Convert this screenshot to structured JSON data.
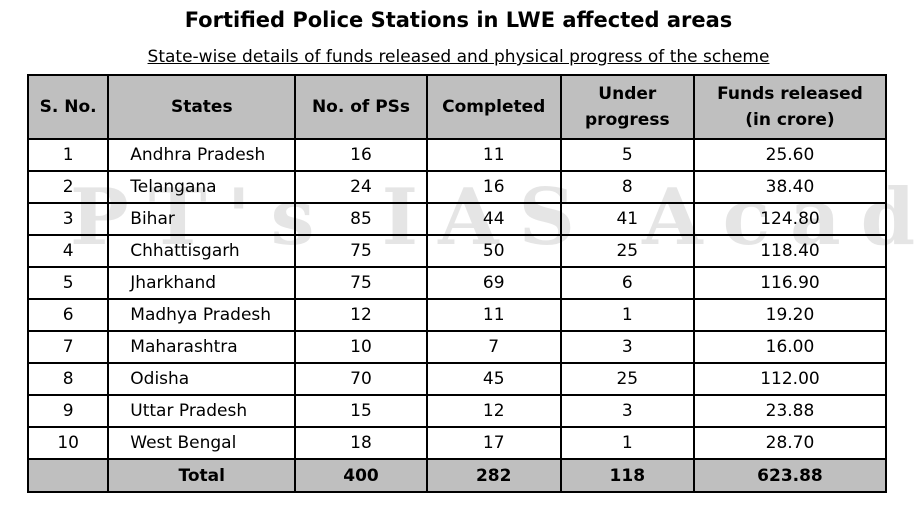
{
  "title": "Fortified Police Stations in LWE affected areas",
  "subtitle": "State-wise details of funds released and physical progress of the scheme",
  "watermark": "PT's IAS Academy",
  "headers": {
    "sno": "S. No.",
    "states": "States",
    "pss": "No. of PSs",
    "completed": "Completed",
    "under_1": "Under",
    "under_2": "progress",
    "funds_1": "Funds released",
    "funds_2": "(in crore)"
  },
  "rows": [
    {
      "sno": "1",
      "state": "Andhra Pradesh",
      "pss": "16",
      "completed": "11",
      "under": "5",
      "funds": "25.60"
    },
    {
      "sno": "2",
      "state": "Telangana",
      "pss": "24",
      "completed": "16",
      "under": "8",
      "funds": "38.40"
    },
    {
      "sno": "3",
      "state": "Bihar",
      "pss": "85",
      "completed": "44",
      "under": "41",
      "funds": "124.80"
    },
    {
      "sno": "4",
      "state": "Chhattisgarh",
      "pss": "75",
      "completed": "50",
      "under": "25",
      "funds": "118.40"
    },
    {
      "sno": "5",
      "state": "Jharkhand",
      "pss": "75",
      "completed": "69",
      "under": "6",
      "funds": "116.90"
    },
    {
      "sno": "6",
      "state": "Madhya Pradesh",
      "pss": "12",
      "completed": "11",
      "under": "1",
      "funds": "19.20"
    },
    {
      "sno": "7",
      "state": "Maharashtra",
      "pss": "10",
      "completed": "7",
      "under": "3",
      "funds": "16.00"
    },
    {
      "sno": "8",
      "state": "Odisha",
      "pss": "70",
      "completed": "45",
      "under": "25",
      "funds": "112.00"
    },
    {
      "sno": "9",
      "state": "Uttar Pradesh",
      "pss": "15",
      "completed": "12",
      "under": "3",
      "funds": "23.88"
    },
    {
      "sno": "10",
      "state": "West Bengal",
      "pss": "18",
      "completed": "17",
      "under": "1",
      "funds": "28.70"
    }
  ],
  "total": {
    "label": "Total",
    "pss": "400",
    "completed": "282",
    "under": "118",
    "funds": "623.88"
  },
  "colors": {
    "header_bg": "#bfbfbf",
    "border": "#000000",
    "watermark": "rgba(0,0,0,0.10)"
  }
}
